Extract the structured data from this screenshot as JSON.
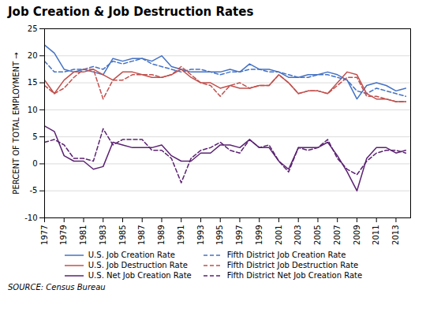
{
  "chart_data": {
    "type": "line",
    "title": "Job Creation & Job Destruction Rates",
    "ylabel": "PERCENT OF TOTAL EMPLOYMENT",
    "source": "SOURCE: Census Bureau",
    "x": [
      1977,
      1978,
      1979,
      1980,
      1981,
      1982,
      1983,
      1984,
      1985,
      1986,
      1987,
      1988,
      1989,
      1990,
      1991,
      1992,
      1993,
      1994,
      1995,
      1996,
      1997,
      1998,
      1999,
      2000,
      2001,
      2002,
      2003,
      2004,
      2005,
      2006,
      2007,
      2008,
      2009,
      2010,
      2011,
      2012,
      2013,
      2014
    ],
    "xlim": [
      1977,
      2014.5
    ],
    "xticks": [
      1977,
      1979,
      1981,
      1983,
      1985,
      1987,
      1989,
      1991,
      1993,
      1995,
      1997,
      1999,
      2001,
      2003,
      2005,
      2007,
      2009,
      2011,
      2013
    ],
    "ylim": [
      -10,
      25
    ],
    "yticks": [
      -10,
      -5,
      0,
      5,
      10,
      15,
      20,
      25
    ],
    "grid": true,
    "legend": "bottom",
    "series": [
      {
        "name": "U.S. Job Creation Rate",
        "color": "#4472C4",
        "line_style": "solid",
        "values": [
          22.0,
          20.5,
          17.5,
          17.0,
          17.5,
          17.0,
          16.5,
          19.5,
          19.0,
          19.5,
          19.5,
          19.0,
          20.0,
          18.0,
          17.5,
          17.0,
          17.0,
          17.0,
          17.0,
          17.5,
          17.0,
          18.5,
          17.5,
          17.5,
          17.0,
          16.0,
          16.0,
          16.5,
          16.5,
          17.0,
          16.5,
          15.5,
          12.0,
          14.5,
          15.0,
          14.5,
          13.5,
          14.0
        ]
      },
      {
        "name": "U.S. Job Destruction Rate",
        "color": "#C0504D",
        "line_style": "solid",
        "values": [
          15.5,
          13.0,
          15.5,
          17.0,
          17.0,
          17.5,
          16.5,
          15.5,
          17.0,
          17.0,
          16.5,
          16.0,
          16.0,
          16.5,
          17.5,
          16.0,
          15.0,
          15.0,
          14.0,
          14.5,
          14.0,
          14.0,
          14.5,
          14.5,
          16.5,
          15.0,
          13.0,
          13.5,
          13.5,
          13.0,
          15.0,
          17.0,
          16.5,
          13.0,
          12.0,
          12.0,
          11.5,
          11.5
        ]
      },
      {
        "name": "U.S. Net Job Creation Rate",
        "color": "#5B2272",
        "line_style": "solid",
        "values": [
          7.0,
          6.0,
          1.5,
          0.5,
          0.5,
          -1.0,
          -0.5,
          4.0,
          3.5,
          3.0,
          3.0,
          3.0,
          3.5,
          1.5,
          0.5,
          0.5,
          2.0,
          2.0,
          3.5,
          3.5,
          3.0,
          4.5,
          3.0,
          3.0,
          0.5,
          -1.0,
          3.0,
          3.0,
          3.0,
          4.0,
          1.5,
          -1.5,
          -5.0,
          1.0,
          3.0,
          3.0,
          2.0,
          2.5
        ]
      },
      {
        "name": "Fifth District Job Creation Rate",
        "color": "#4472C4",
        "line_style": "dashed",
        "values": [
          19.0,
          17.0,
          17.0,
          17.5,
          17.5,
          18.0,
          17.5,
          19.0,
          18.5,
          19.0,
          19.5,
          18.5,
          18.0,
          17.5,
          17.0,
          17.5,
          17.5,
          17.0,
          16.5,
          17.0,
          17.0,
          17.5,
          17.5,
          17.0,
          17.0,
          16.5,
          16.0,
          16.0,
          16.5,
          16.5,
          16.0,
          15.5,
          13.5,
          13.0,
          14.0,
          13.5,
          13.0,
          12.5
        ]
      },
      {
        "name": "Fifth District Job Destruction Rate",
        "color": "#C0504D",
        "line_style": "dashed",
        "values": [
          14.5,
          13.0,
          14.0,
          16.0,
          17.5,
          17.5,
          12.0,
          15.5,
          15.5,
          16.5,
          16.5,
          16.5,
          16.0,
          16.5,
          18.0,
          16.5,
          15.0,
          14.5,
          12.5,
          14.5,
          15.0,
          14.0,
          14.5,
          14.5,
          16.5,
          15.0,
          13.0,
          13.5,
          13.5,
          13.0,
          14.5,
          16.0,
          16.0,
          12.5,
          12.5,
          12.0,
          11.5,
          11.5
        ]
      },
      {
        "name": "Fifth District Net Job Creation Rate",
        "color": "#5B2272",
        "line_style": "dashed",
        "values": [
          4.0,
          4.5,
          3.5,
          1.0,
          1.0,
          0.5,
          6.5,
          3.5,
          4.5,
          4.5,
          4.5,
          2.5,
          2.5,
          1.0,
          -3.5,
          1.0,
          2.5,
          3.0,
          4.0,
          2.5,
          2.0,
          4.5,
          3.0,
          3.5,
          0.5,
          -1.5,
          3.0,
          2.5,
          3.0,
          4.5,
          1.0,
          -1.0,
          -2.0,
          0.5,
          2.0,
          2.5,
          2.5,
          2.0
        ]
      }
    ]
  }
}
